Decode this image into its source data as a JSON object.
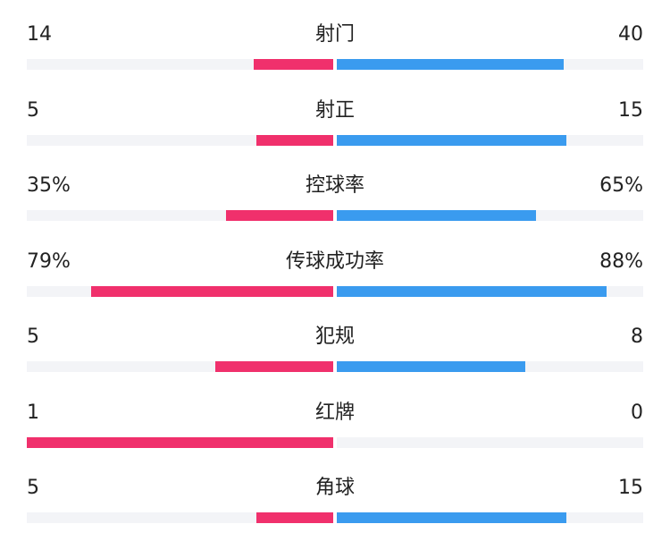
{
  "colors": {
    "home": "#f0306c",
    "away": "#3a9bef",
    "track": "#f3f4f7"
  },
  "chart_data": {
    "type": "bar",
    "categories": [
      "射门",
      "射正",
      "控球率",
      "传球成功率",
      "犯规",
      "红牌",
      "角球"
    ],
    "series": [
      {
        "values": [
          14,
          5,
          35,
          79,
          5,
          1,
          5
        ],
        "display": [
          "14",
          "5",
          "35%",
          "79%",
          "5",
          "1",
          "5"
        ]
      },
      {
        "values": [
          40,
          15,
          65,
          88,
          8,
          0,
          15
        ],
        "display": [
          "40",
          "15",
          "65%",
          "88%",
          "8",
          "0",
          "15"
        ]
      }
    ],
    "bar_fraction": [
      [
        0.26,
        0.74
      ],
      [
        0.25,
        0.75
      ],
      [
        0.35,
        0.65
      ],
      [
        0.79,
        0.88
      ],
      [
        0.385,
        0.615
      ],
      [
        1.0,
        0.0
      ],
      [
        0.25,
        0.75
      ]
    ]
  }
}
